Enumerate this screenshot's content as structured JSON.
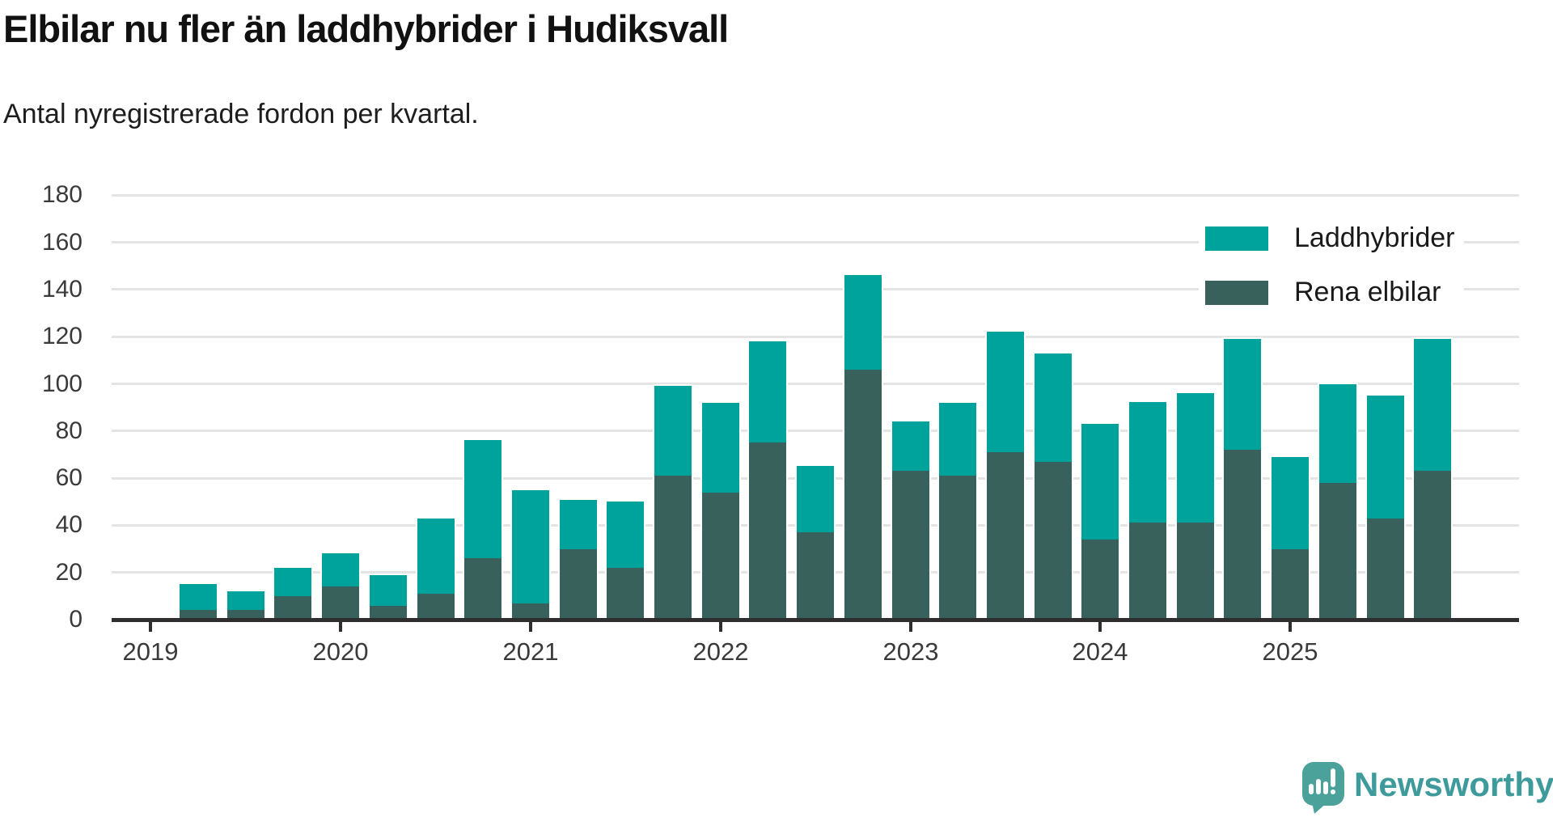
{
  "header": {
    "title": "Elbilar nu fler än laddhybrider i Hudiksvall",
    "subtitle": "Antal nyregistrerade fordon per kvartal."
  },
  "chart_data": {
    "type": "bar",
    "stacked": true,
    "title": "Elbilar nu fler än laddhybrider i Hudiksvall",
    "subtitle": "Antal nyregistrerade fordon per kvartal.",
    "quarters": [
      "2019-Q2",
      "2019-Q3",
      "2019-Q4",
      "2020-Q1",
      "2020-Q2",
      "2020-Q3",
      "2020-Q4",
      "2021-Q1",
      "2021-Q2",
      "2021-Q3",
      "2021-Q4",
      "2022-Q1",
      "2022-Q2",
      "2022-Q3",
      "2022-Q4",
      "2023-Q1",
      "2023-Q2",
      "2023-Q3",
      "2023-Q4",
      "2024-Q1",
      "2024-Q2",
      "2024-Q3",
      "2024-Q4",
      "2025-Q1",
      "2025-Q2",
      "2025-Q3",
      "2025-Q4"
    ],
    "series": [
      {
        "name": "Rena elbilar",
        "color": "#38615b",
        "values": [
          4,
          4,
          10,
          14,
          6,
          11,
          26,
          7,
          30,
          22,
          61,
          54,
          75,
          37,
          106,
          63,
          61,
          71,
          67,
          34,
          41,
          41,
          72,
          30,
          58,
          43,
          63
        ]
      },
      {
        "name": "Laddhybrider",
        "color": "#00a39b",
        "values": [
          11,
          8,
          12,
          14,
          13,
          32,
          50,
          48,
          21,
          28,
          38,
          38,
          43,
          28,
          40,
          21,
          31,
          51,
          46,
          49,
          51,
          55,
          47,
          39,
          42,
          52,
          56
        ]
      }
    ],
    "totals": [
      15,
      12,
      22,
      28,
      19,
      43,
      76,
      55,
      51,
      50,
      99,
      92,
      118,
      65,
      146,
      84,
      92,
      122,
      113,
      83,
      92,
      96,
      119,
      69,
      100,
      95,
      119
    ],
    "x_tick_labels": [
      "2019",
      "2020",
      "2021",
      "2022",
      "2023",
      "2024",
      "2025"
    ],
    "y_ticks": [
      0,
      20,
      40,
      60,
      80,
      100,
      120,
      140,
      160,
      180
    ],
    "ylim": [
      0,
      180
    ],
    "grid": "horizontal",
    "legend_position": "top-right"
  },
  "legend": {
    "items": [
      {
        "label": "Laddhybrider",
        "color": "#00a39b"
      },
      {
        "label": "Rena elbilar",
        "color": "#38615b"
      }
    ]
  },
  "footer": {
    "brand": "Newsworthy"
  },
  "colors": {
    "laddhybrider": "#00a39b",
    "rena_elbilar": "#38615b",
    "axis": "#2e2e2e",
    "gridline": "#e4e4e4",
    "logo_teal": "#4aa29b",
    "brand_text": "#3f9b9b"
  }
}
